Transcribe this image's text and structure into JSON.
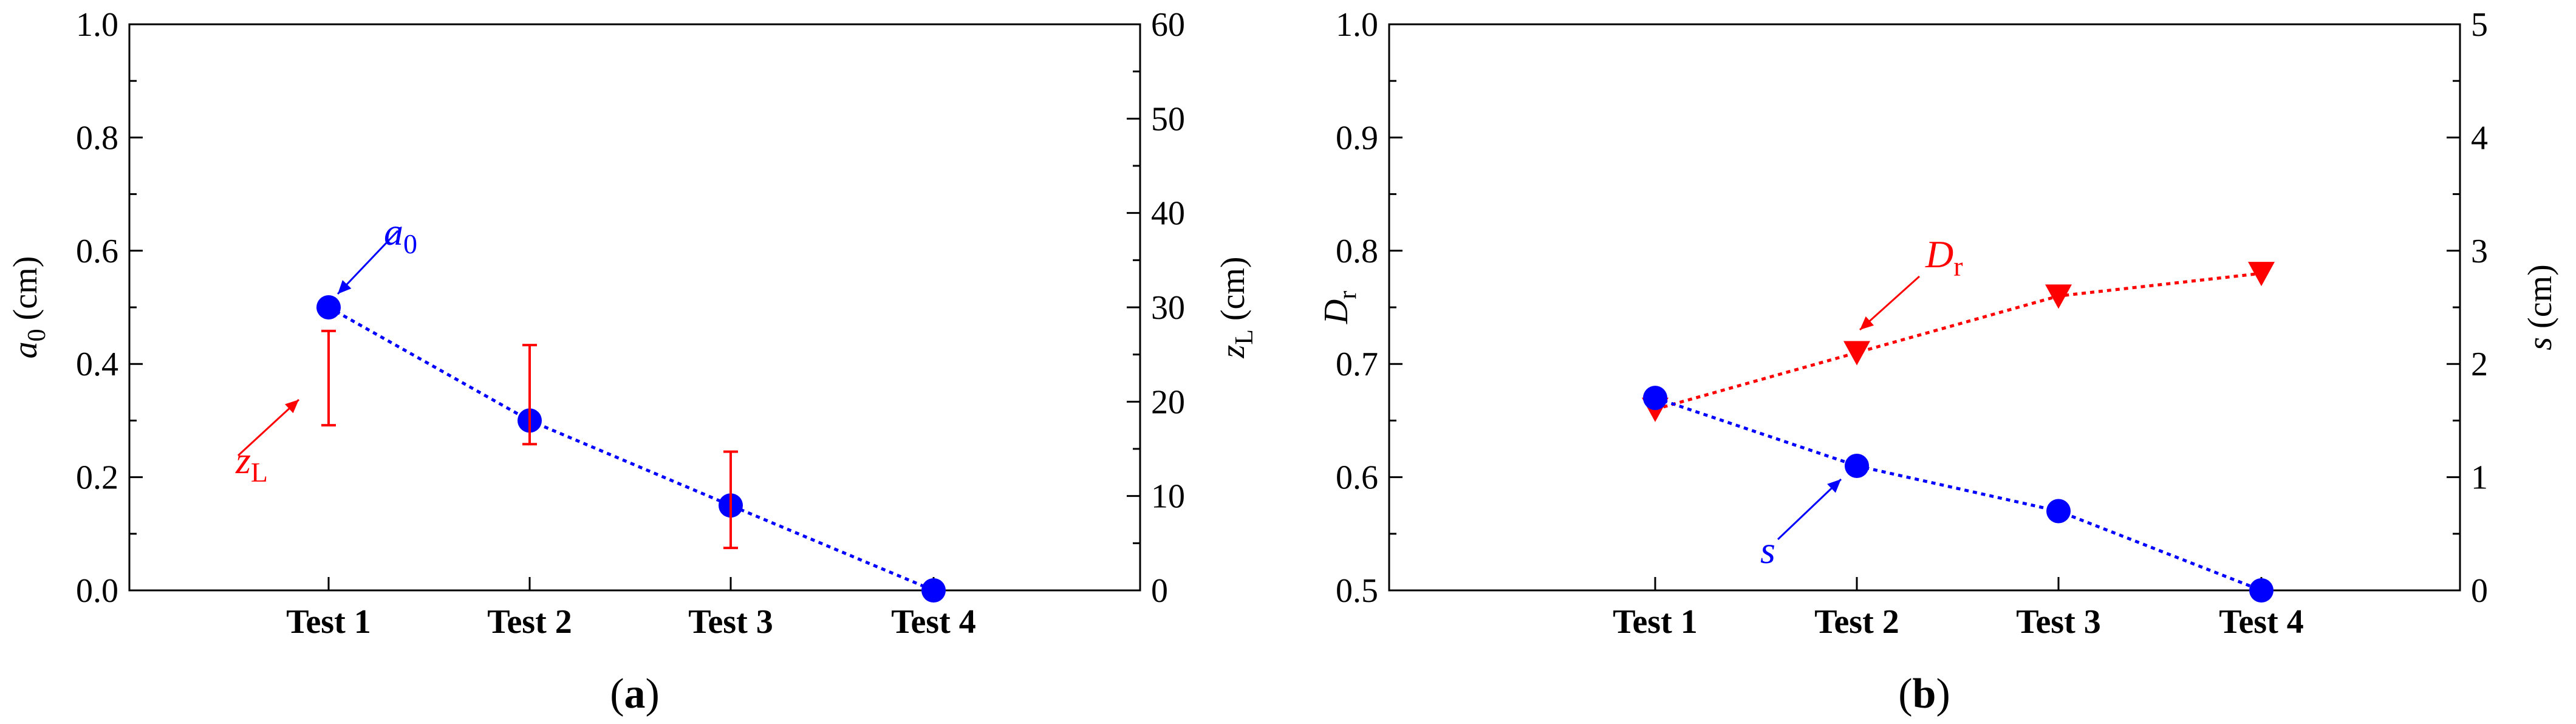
{
  "chart_data": [
    {
      "type": "line",
      "panel_label": "(a)",
      "panel_label_letter": "a",
      "categories": [
        "Test 1",
        "Test 2",
        "Test 3",
        "Test 4"
      ],
      "left_axis": {
        "label": "a",
        "label_sub": "0",
        "unit": "(cm)",
        "ylim": [
          0,
          1.0
        ],
        "ticks": [
          "0.0",
          "0.2",
          "0.4",
          "0.6",
          "0.8",
          "1.0"
        ]
      },
      "right_axis": {
        "label": "z",
        "label_sub": "L",
        "unit": "(cm)",
        "ylim": [
          0,
          60
        ],
        "ticks": [
          "0",
          "10",
          "20",
          "30",
          "40",
          "50",
          "60"
        ]
      },
      "series": [
        {
          "name": "a",
          "name_sub": "0",
          "axis": "left",
          "color": "#0000ff",
          "marker": "circle",
          "line": "dotted",
          "values": [
            0.5,
            0.3,
            0.15,
            0.0
          ]
        },
        {
          "name": "z",
          "name_sub": "L",
          "axis": "right",
          "color": "#ff0000",
          "marker": "errorbar",
          "ranges": [
            [
              17.5,
              27.5
            ],
            [
              15.5,
              26.0
            ],
            [
              4.5,
              14.7
            ]
          ]
        }
      ],
      "grid": false
    },
    {
      "type": "line",
      "panel_label": "(b)",
      "panel_label_letter": "b",
      "categories": [
        "Test 1",
        "Test 2",
        "Test 3",
        "Test 4"
      ],
      "left_axis": {
        "label": "D",
        "label_sub": "r",
        "unit": "",
        "ylim": [
          0.5,
          1.0
        ],
        "ticks": [
          "0.5",
          "0.6",
          "0.7",
          "0.8",
          "0.9",
          "1.0"
        ]
      },
      "right_axis": {
        "label": "s",
        "label_sub": "",
        "unit": "(cm)",
        "ylim": [
          0,
          5
        ],
        "ticks": [
          "0",
          "1",
          "2",
          "3",
          "4",
          "5"
        ]
      },
      "series": [
        {
          "name": "D",
          "name_sub": "r",
          "axis": "left",
          "color": "#ff0000",
          "marker": "triangle-down",
          "line": "dotted",
          "values": [
            0.66,
            0.71,
            0.76,
            0.78
          ]
        },
        {
          "name": "s",
          "name_sub": "",
          "axis": "right",
          "color": "#0000ff",
          "marker": "circle",
          "line": "dotted",
          "values": [
            1.7,
            1.1,
            0.7,
            0.0
          ]
        }
      ],
      "grid": false
    }
  ]
}
